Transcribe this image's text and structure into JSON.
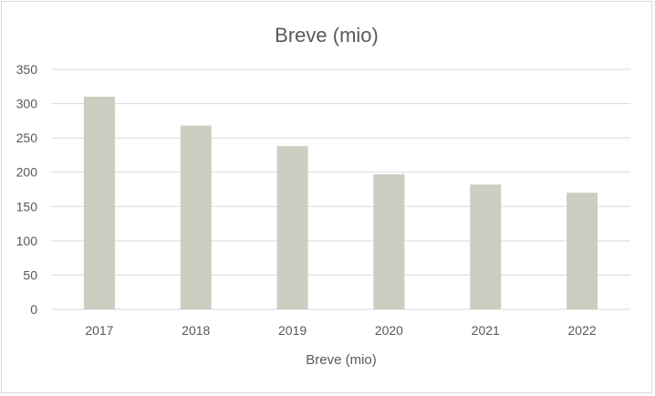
{
  "chart_data": {
    "type": "bar",
    "title": "Breve (mio)",
    "xlabel": "Breve (mio)",
    "ylabel": "",
    "categories": [
      "2017",
      "2018",
      "2019",
      "2020",
      "2021",
      "2022"
    ],
    "values": [
      310,
      268,
      238,
      197,
      182,
      170
    ],
    "ylim": [
      0,
      350
    ],
    "yticks": [
      0,
      50,
      100,
      150,
      200,
      250,
      300,
      350
    ],
    "grid": true,
    "legend": "none",
    "bar_color": "#cccec2"
  }
}
